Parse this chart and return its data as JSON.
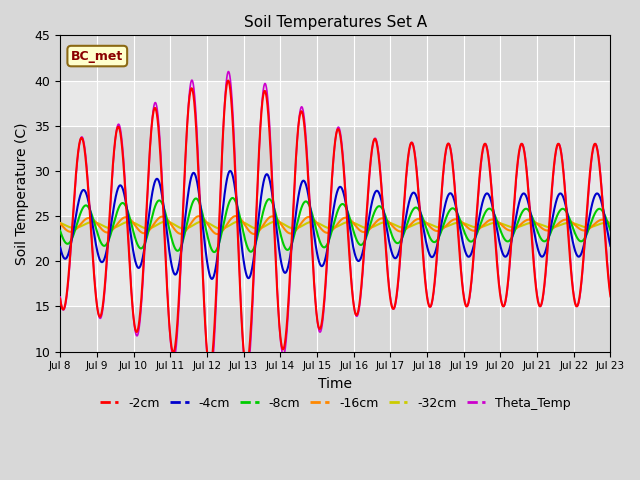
{
  "title": "Soil Temperatures Set A",
  "xlabel": "Time",
  "ylabel": "Soil Temperature (C)",
  "ylim": [
    10,
    45
  ],
  "yticks": [
    10,
    15,
    20,
    25,
    30,
    35,
    40,
    45
  ],
  "x_ticks_labels": [
    "Jul 8",
    "Jul 9",
    "Jul 10",
    "Jul 11",
    "Jul 12",
    "Jul 13",
    "Jul 14",
    "Jul 15",
    "Jul 16",
    "Jul 17",
    "Jul 18",
    "Jul 19",
    "Jul 20",
    "Jul 21",
    "Jul 22",
    "Jul 23"
  ],
  "series_colors": {
    "-2cm": "#ff0000",
    "-4cm": "#0000cc",
    "-8cm": "#00cc00",
    "-16cm": "#ff8800",
    "-32cm": "#cccc00",
    "Theta_Temp": "#cc00cc"
  },
  "legend_label": "BC_met",
  "mean_temp": 24.0,
  "figsize": [
    6.4,
    4.8
  ],
  "dpi": 100
}
